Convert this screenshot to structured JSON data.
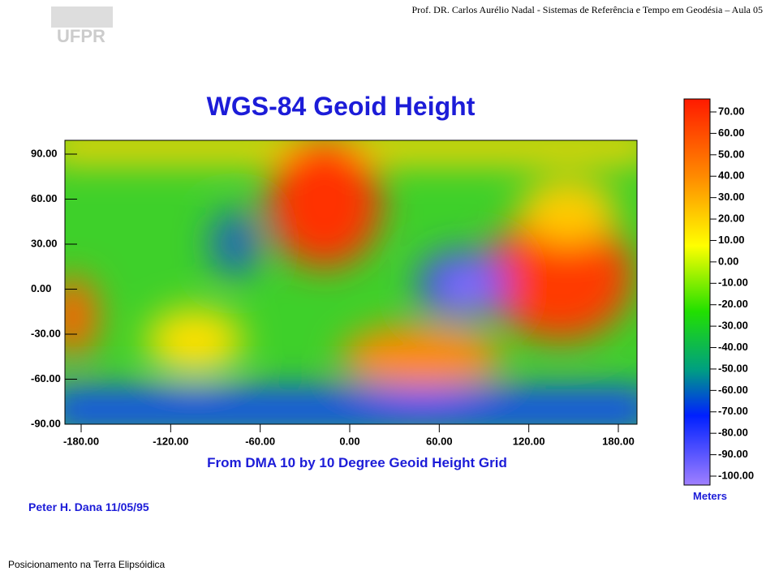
{
  "header": {
    "logo": "UFPR",
    "text": "Prof. DR. Carlos Aurélio Nadal - Sistemas de Referência e Tempo em Geodésia – Aula 05"
  },
  "map": {
    "title": "WGS-84 Geoid Height",
    "yticks": [
      "90.00",
      "60.00",
      "30.00",
      "0.00",
      "-30.00",
      "-60.00",
      "-90.00"
    ],
    "xticks": [
      "-180.00",
      "-120.00",
      "-60.00",
      "0.00",
      "60.00",
      "120.00",
      "180.00"
    ],
    "subtitle": "From DMA 10 by 10 Degree Geoid Height Grid",
    "author": "Peter H. Dana 11/05/95",
    "colorbar": {
      "ticks": [
        "70.00",
        "60.00",
        "50.00",
        "40.00",
        "30.00",
        "20.00",
        "10.00",
        "0.00",
        "-10.00",
        "-20.00",
        "-30.00",
        "-40.00",
        "-50.00",
        "-60.00",
        "-70.00",
        "-80.00",
        "-90.00",
        "-100.00"
      ],
      "unit": "Meters"
    }
  },
  "footer": "Posicionamento na Terra Elipsóidica"
}
